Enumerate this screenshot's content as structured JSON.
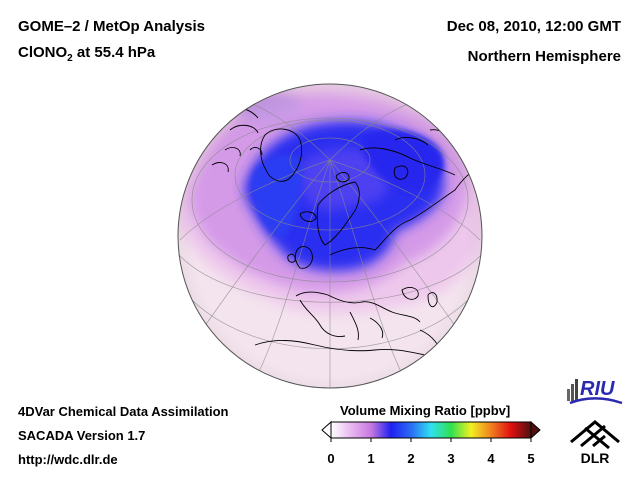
{
  "header": {
    "title_line1": "GOME–2 / MetOp Analysis",
    "species_prefix": "ClONO",
    "species_subscript": "2",
    "species_suffix": " at 55.4 hPa",
    "datetime": "Dec 08, 2010, 12:00 GMT",
    "region": "Northern Hemisphere"
  },
  "footer": {
    "line1": "4DVar Chemical Data Assimilation",
    "line2": "SACADA Version 1.7",
    "line3": "http://wdc.dlr.de"
  },
  "colorbar": {
    "title": "Volume Mixing Ratio [ppbv]",
    "ticks": [
      "0",
      "1",
      "2",
      "3",
      "4",
      "5"
    ],
    "min": 0,
    "max": 5,
    "colors": [
      "#ffffff",
      "#e8b8ef",
      "#c878e0",
      "#2020f0",
      "#2a6cf5",
      "#30e0f0",
      "#30e050",
      "#f0f020",
      "#f08020",
      "#e01010",
      "#501010"
    ]
  },
  "map": {
    "projection": "orthographic",
    "view": "north polar, centered on Europe",
    "field_colors": {
      "background": "#f4e4ee",
      "low": "#eec8ec",
      "mid": "#d49ae8",
      "high": "#2b2df0"
    }
  },
  "logos": {
    "riu": "RIU",
    "dlr": "DLR"
  }
}
